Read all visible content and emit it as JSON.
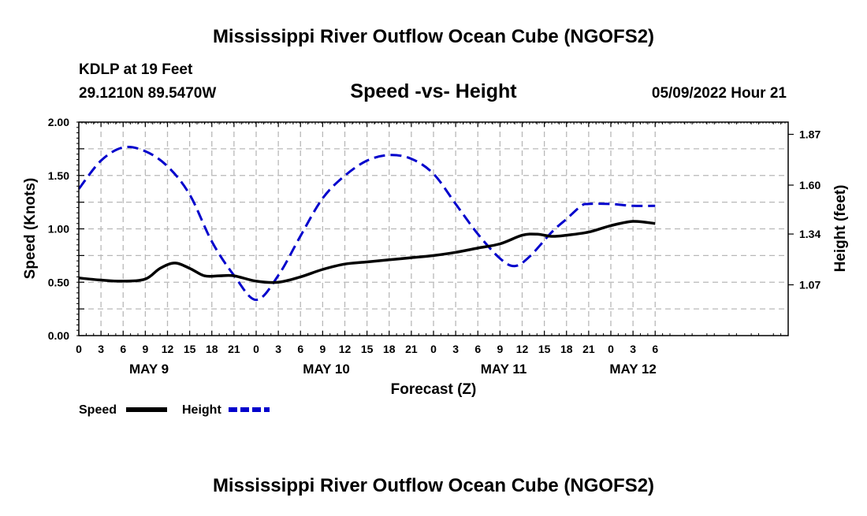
{
  "chart_data": {
    "type": "line",
    "title": "Mississippi River Outflow Ocean Cube (NGOFS2)",
    "footer_title": "Mississippi River Outflow Ocean Cube (NGOFS2)",
    "station": "KDLP at 19 Feet",
    "location": "29.1210N  89.5470W",
    "subtitle": "Speed -vs- Height",
    "timestamp": "05/09/2022 Hour 21",
    "xlabel": "Forecast (Z)",
    "ylabel_left": "Speed (Knots)",
    "ylabel_right": "Height (feet)",
    "x_range_hours": [
      0,
      96
    ],
    "ylim_left": [
      0,
      2
    ],
    "ylim_right": [
      0.8,
      1.935
    ],
    "x_ticks": [
      {
        "h": 0,
        "label": "0"
      },
      {
        "h": 3,
        "label": "3"
      },
      {
        "h": 6,
        "label": "6"
      },
      {
        "h": 9,
        "label": "9"
      },
      {
        "h": 12,
        "label": "12"
      },
      {
        "h": 15,
        "label": "15"
      },
      {
        "h": 18,
        "label": "18"
      },
      {
        "h": 21,
        "label": "21"
      },
      {
        "h": 24,
        "label": "0"
      },
      {
        "h": 27,
        "label": "3"
      },
      {
        "h": 30,
        "label": "6"
      },
      {
        "h": 33,
        "label": "9"
      },
      {
        "h": 36,
        "label": "12"
      },
      {
        "h": 39,
        "label": "15"
      },
      {
        "h": 42,
        "label": "18"
      },
      {
        "h": 45,
        "label": "21"
      },
      {
        "h": 48,
        "label": "0"
      },
      {
        "h": 51,
        "label": "3"
      },
      {
        "h": 54,
        "label": "6"
      },
      {
        "h": 57,
        "label": "9"
      },
      {
        "h": 60,
        "label": "12"
      },
      {
        "h": 63,
        "label": "15"
      },
      {
        "h": 66,
        "label": "18"
      },
      {
        "h": 69,
        "label": "21"
      },
      {
        "h": 72,
        "label": "0"
      },
      {
        "h": 75,
        "label": "3"
      },
      {
        "h": 78,
        "label": "6"
      }
    ],
    "date_labels": [
      {
        "h": 9.5,
        "label": "MAY 9"
      },
      {
        "h": 33.5,
        "label": "MAY 10"
      },
      {
        "h": 57.5,
        "label": "MAY 11"
      },
      {
        "h": 75,
        "label": "MAY 12"
      }
    ],
    "y_ticks_left": [
      {
        "v": 0.0,
        "label": "0.00"
      },
      {
        "v": 0.5,
        "label": "0.50"
      },
      {
        "v": 1.0,
        "label": "1.00"
      },
      {
        "v": 1.5,
        "label": "1.50"
      },
      {
        "v": 2.0,
        "label": "2.00"
      }
    ],
    "y_ticks_right": [
      {
        "v": 1.07,
        "label": "1.07"
      },
      {
        "v": 1.34,
        "label": "1.34"
      },
      {
        "v": 1.6,
        "label": "1.60"
      },
      {
        "v": 1.87,
        "label": "1.87"
      }
    ],
    "series": [
      {
        "name": "Speed",
        "axis": "left",
        "color": "#000000",
        "dash": "solid",
        "points": [
          [
            0,
            0.54
          ],
          [
            3,
            0.52
          ],
          [
            6,
            0.51
          ],
          [
            9,
            0.53
          ],
          [
            11,
            0.63
          ],
          [
            13,
            0.68
          ],
          [
            15,
            0.63
          ],
          [
            17,
            0.56
          ],
          [
            19,
            0.56
          ],
          [
            21,
            0.56
          ],
          [
            24,
            0.51
          ],
          [
            27,
            0.5
          ],
          [
            30,
            0.55
          ],
          [
            33,
            0.62
          ],
          [
            36,
            0.67
          ],
          [
            39,
            0.69
          ],
          [
            42,
            0.71
          ],
          [
            45,
            0.73
          ],
          [
            48,
            0.75
          ],
          [
            51,
            0.78
          ],
          [
            54,
            0.82
          ],
          [
            57,
            0.86
          ],
          [
            60,
            0.94
          ],
          [
            62,
            0.95
          ],
          [
            64,
            0.93
          ],
          [
            66,
            0.94
          ],
          [
            69,
            0.97
          ],
          [
            72,
            1.03
          ],
          [
            75,
            1.07
          ],
          [
            78,
            1.05
          ]
        ]
      },
      {
        "name": "Height",
        "axis": "right",
        "color": "#0000cc",
        "dash": "dashed",
        "points": [
          [
            0,
            1.58
          ],
          [
            3,
            1.73
          ],
          [
            6,
            1.8
          ],
          [
            9,
            1.78
          ],
          [
            12,
            1.7
          ],
          [
            15,
            1.55
          ],
          [
            18,
            1.3
          ],
          [
            21,
            1.12
          ],
          [
            24,
            0.99
          ],
          [
            27,
            1.12
          ],
          [
            30,
            1.33
          ],
          [
            33,
            1.53
          ],
          [
            36,
            1.65
          ],
          [
            39,
            1.73
          ],
          [
            42,
            1.76
          ],
          [
            45,
            1.74
          ],
          [
            48,
            1.66
          ],
          [
            51,
            1.5
          ],
          [
            54,
            1.34
          ],
          [
            57,
            1.21
          ],
          [
            59,
            1.17
          ],
          [
            61,
            1.22
          ],
          [
            64,
            1.35
          ],
          [
            66,
            1.42
          ],
          [
            68,
            1.49
          ],
          [
            69,
            1.5
          ],
          [
            72,
            1.5
          ],
          [
            75,
            1.49
          ],
          [
            78,
            1.49
          ]
        ]
      }
    ]
  },
  "legend": {
    "speed_label": "Speed",
    "height_label": "Height"
  }
}
